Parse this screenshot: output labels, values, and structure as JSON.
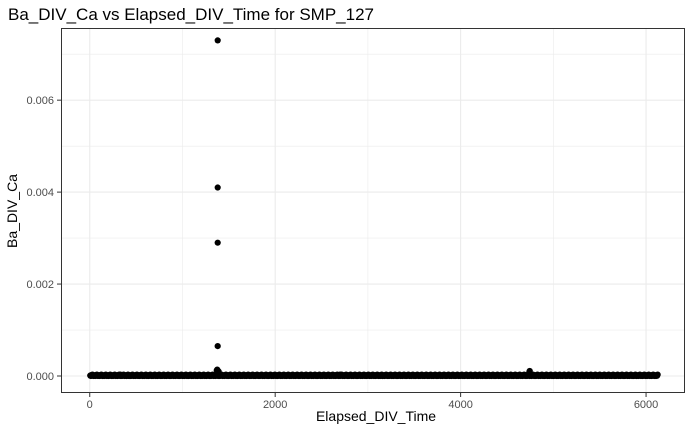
{
  "chart_data": {
    "type": "scatter",
    "title": "Ba_DIV_Ca vs Elapsed_DIV_Time for SMP_127",
    "xlabel": "Elapsed_DIV_Time",
    "ylabel": "Ba_DIV_Ca",
    "xlim": [
      -310,
      6420
    ],
    "ylim": [
      -0.00037,
      0.00757
    ],
    "x_ticks": [
      0,
      2000,
      4000,
      6000
    ],
    "x_tick_labels": [
      "0",
      "2000",
      "4000",
      "6000"
    ],
    "y_ticks": [
      0.0,
      0.002,
      0.004,
      0.006
    ],
    "y_tick_labels": [
      "0.000",
      "0.002",
      "0.004",
      "0.006"
    ],
    "grid": true,
    "background": "#ffffff",
    "grid_color": "#ebebeb",
    "point_color": "#000000",
    "series": [
      {
        "x": [
          1380,
          1380,
          1380,
          1380,
          1370,
          1390,
          1375,
          4745,
          4740,
          4750,
          330,
          750,
          2700,
          3250,
          5370,
          5700,
          6040
        ],
        "y": [
          0.0073,
          0.0041,
          0.0029,
          0.00065,
          0.00012,
          0.0001,
          0.00014,
          0.00011,
          8e-05,
          6e-05,
          3e-05,
          2e-05,
          3e-05,
          2e-05,
          2e-05,
          1e-05,
          1e-05
        ]
      }
    ],
    "baseline_band": {
      "x_start": 5,
      "x_end": 6130,
      "y_values": [
        1e-05,
        0.0,
        2e-05,
        5e-06,
        3e-05,
        1e-05,
        0.0,
        1.5e-05
      ]
    }
  }
}
